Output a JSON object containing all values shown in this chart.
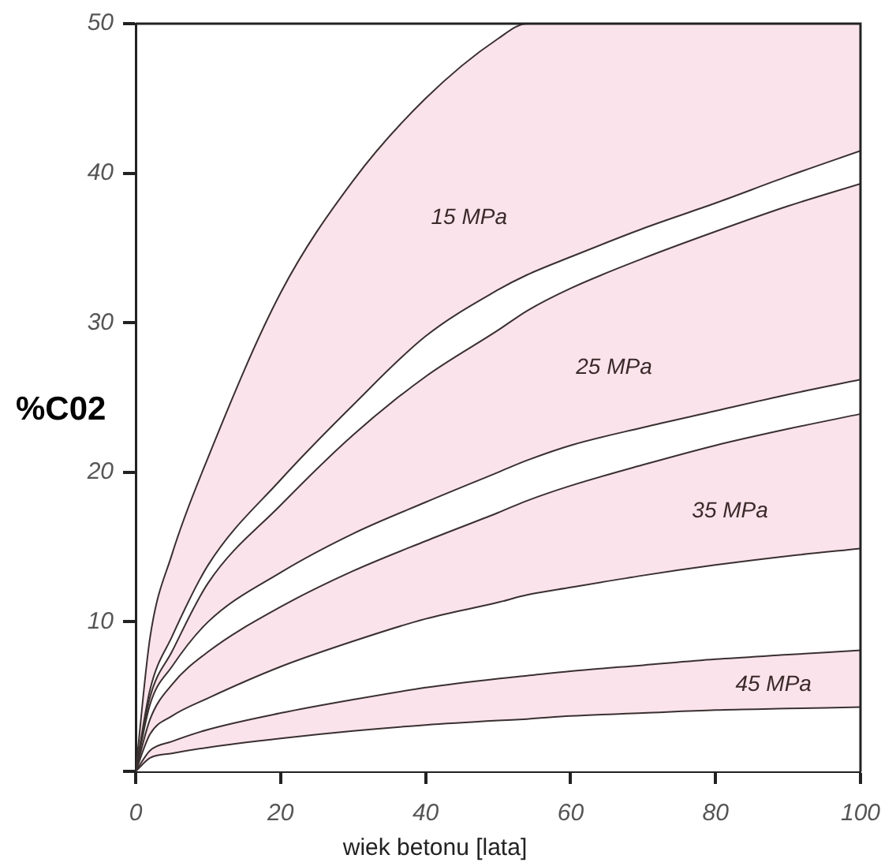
{
  "chart_data": {
    "type": "area",
    "stacked": true,
    "xlabel": "wiek betonu [lata]",
    "ylabel": "%C02",
    "x": [
      0,
      2,
      5,
      10,
      20,
      30,
      40,
      50,
      54,
      60,
      70,
      80,
      90,
      100
    ],
    "series": [
      {
        "color": "#ffffff",
        "values": [
          0,
          0.9,
          1.2,
          1.6,
          2.2,
          2.7,
          3.1,
          3.4,
          3.5,
          3.7,
          3.9,
          4.1,
          4.2,
          4.3
        ]
      },
      {
        "color": "#fbe3ec",
        "values": [
          0,
          0.5,
          0.8,
          1.2,
          1.7,
          2.1,
          2.5,
          2.8,
          2.9,
          3.0,
          3.2,
          3.4,
          3.6,
          3.8
        ]
      },
      {
        "color": "#ffffff",
        "values": [
          0,
          1.1,
          1.7,
          2.1,
          3.1,
          3.9,
          4.6,
          5.1,
          5.4,
          5.6,
          6.0,
          6.3,
          6.6,
          6.8
        ]
      },
      {
        "color": "#fbe3ec",
        "values": [
          0,
          1.0,
          2.1,
          3.1,
          4.0,
          4.7,
          5.2,
          6.0,
          6.3,
          6.8,
          7.4,
          8.0,
          8.5,
          9.0
        ]
      },
      {
        "color": "#ffffff",
        "values": [
          0,
          1.0,
          1.2,
          2.0,
          2.3,
          2.5,
          2.6,
          2.7,
          2.7,
          2.7,
          2.5,
          2.3,
          2.3,
          2.3
        ]
      },
      {
        "color": "#fbe3ec",
        "values": [
          0,
          0.5,
          1.0,
          2.6,
          4.5,
          6.6,
          8.4,
          9.5,
          10.0,
          10.5,
          11.3,
          12.0,
          12.6,
          13.1
        ]
      },
      {
        "color": "#ffffff",
        "values": [
          0,
          0.5,
          1.0,
          1.2,
          1.7,
          2.0,
          2.7,
          2.7,
          2.4,
          2.1,
          2.0,
          1.9,
          2.0,
          2.2
        ]
      },
      {
        "color": "#fbe3ec",
        "values": [
          0,
          3.5,
          5.5,
          7.2,
          12.5,
          15.0,
          15.9,
          16.8,
          16.8,
          15.6,
          13.7,
          12.0,
          10.2,
          8.5
        ]
      }
    ],
    "annotations": [
      "15 MPa",
      "25 MPa",
      "35 MPa",
      "45 MPa"
    ],
    "xlim": [
      0,
      100
    ],
    "ylim": [
      0,
      50
    ],
    "xticks": [
      0,
      20,
      40,
      60,
      80,
      100
    ],
    "yticks": [
      {
        "value": 0,
        "label": null
      },
      10,
      20,
      30,
      40,
      50
    ],
    "grid": false,
    "legend": false
  }
}
